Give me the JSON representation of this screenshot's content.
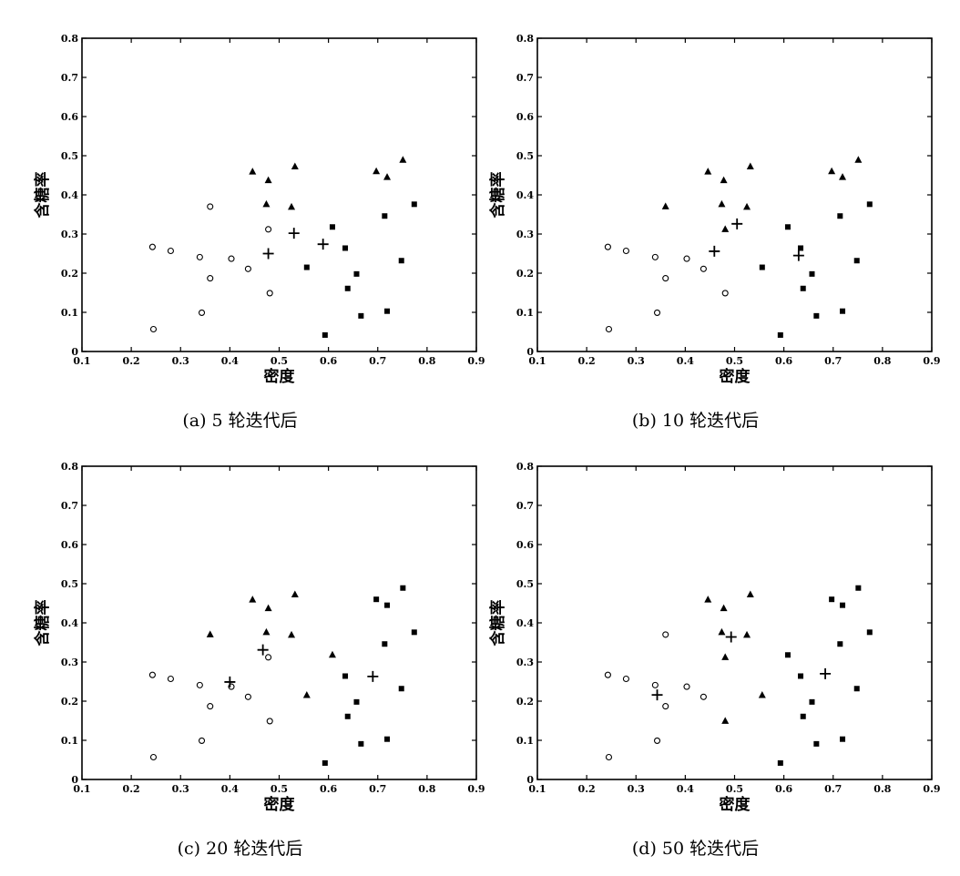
{
  "chart_data": [
    {
      "type": "scatter",
      "caption": "(a) 5 轮迭代后",
      "xlabel": "密度",
      "ylabel": "含糖率",
      "xlim": [
        0.1,
        0.9
      ],
      "ylim": [
        0,
        0.8
      ],
      "xticks": [
        "0.1",
        "0.2",
        "0.3",
        "0.4",
        "0.5",
        "0.6",
        "0.7",
        "0.8",
        "0.9"
      ],
      "yticks": [
        "0",
        "0.1",
        "0.2",
        "0.3",
        "0.4",
        "0.5",
        "0.6",
        "0.7",
        "0.8"
      ],
      "series": [
        {
          "marker": "circle",
          "points": [
            [
              0.243,
              0.267
            ],
            [
              0.28,
              0.257
            ],
            [
              0.245,
              0.057
            ],
            [
              0.343,
              0.099
            ],
            [
              0.339,
              0.241
            ],
            [
              0.36,
              0.37
            ],
            [
              0.36,
              0.187
            ],
            [
              0.403,
              0.237
            ],
            [
              0.437,
              0.211
            ],
            [
              0.481,
              0.149
            ],
            [
              0.478,
              0.312
            ]
          ]
        },
        {
          "marker": "triangle",
          "points": [
            [
              0.446,
              0.459
            ],
            [
              0.474,
              0.376
            ],
            [
              0.478,
              0.437
            ],
            [
              0.525,
              0.369
            ],
            [
              0.532,
              0.472
            ],
            [
              0.697,
              0.46
            ],
            [
              0.719,
              0.445
            ],
            [
              0.751,
              0.489
            ]
          ]
        },
        {
          "marker": "square",
          "points": [
            [
              0.593,
              0.042
            ],
            [
              0.608,
              0.318
            ],
            [
              0.634,
              0.264
            ],
            [
              0.639,
              0.161
            ],
            [
              0.657,
              0.198
            ],
            [
              0.666,
              0.091
            ],
            [
              0.719,
              0.103
            ],
            [
              0.714,
              0.346
            ],
            [
              0.748,
              0.232
            ],
            [
              0.774,
              0.376
            ],
            [
              0.556,
              0.215
            ]
          ]
        },
        {
          "marker": "plus",
          "points": [
            [
              0.478,
              0.25
            ],
            [
              0.53,
              0.302
            ],
            [
              0.589,
              0.274
            ]
          ]
        }
      ]
    },
    {
      "type": "scatter",
      "caption": "(b) 10 轮迭代后",
      "xlabel": "密度",
      "ylabel": "含糖率",
      "xlim": [
        0.1,
        0.9
      ],
      "ylim": [
        0,
        0.8
      ],
      "xticks": [
        "0.1",
        "0.2",
        "0.3",
        "0.4",
        "0.5",
        "0.6",
        "0.7",
        "0.8",
        "0.9"
      ],
      "yticks": [
        "0",
        "0.1",
        "0.2",
        "0.3",
        "0.4",
        "0.5",
        "0.6",
        "0.7",
        "0.8"
      ],
      "series": [
        {
          "marker": "circle",
          "points": [
            [
              0.243,
              0.267
            ],
            [
              0.28,
              0.257
            ],
            [
              0.245,
              0.057
            ],
            [
              0.343,
              0.099
            ],
            [
              0.339,
              0.241
            ],
            [
              0.36,
              0.187
            ],
            [
              0.403,
              0.237
            ],
            [
              0.437,
              0.211
            ],
            [
              0.481,
              0.149
            ]
          ]
        },
        {
          "marker": "triangle",
          "points": [
            [
              0.36,
              0.37
            ],
            [
              0.446,
              0.459
            ],
            [
              0.474,
              0.376
            ],
            [
              0.478,
              0.437
            ],
            [
              0.481,
              0.312
            ],
            [
              0.525,
              0.369
            ],
            [
              0.532,
              0.472
            ],
            [
              0.697,
              0.46
            ],
            [
              0.719,
              0.445
            ],
            [
              0.751,
              0.489
            ]
          ]
        },
        {
          "marker": "square",
          "points": [
            [
              0.593,
              0.042
            ],
            [
              0.608,
              0.318
            ],
            [
              0.634,
              0.264
            ],
            [
              0.639,
              0.161
            ],
            [
              0.657,
              0.198
            ],
            [
              0.666,
              0.091
            ],
            [
              0.719,
              0.103
            ],
            [
              0.714,
              0.346
            ],
            [
              0.748,
              0.232
            ],
            [
              0.774,
              0.376
            ],
            [
              0.556,
              0.215
            ]
          ]
        },
        {
          "marker": "plus",
          "points": [
            [
              0.459,
              0.256
            ],
            [
              0.505,
              0.326
            ],
            [
              0.63,
              0.245
            ]
          ]
        }
      ]
    },
    {
      "type": "scatter",
      "caption": "(c) 20 轮迭代后",
      "xlabel": "密度",
      "ylabel": "含糖率",
      "xlim": [
        0.1,
        0.9
      ],
      "ylim": [
        0,
        0.8
      ],
      "xticks": [
        "0.1",
        "0.2",
        "0.3",
        "0.4",
        "0.5",
        "0.6",
        "0.7",
        "0.8",
        "0.9"
      ],
      "yticks": [
        "0",
        "0.1",
        "0.2",
        "0.3",
        "0.4",
        "0.5",
        "0.6",
        "0.7",
        "0.8"
      ],
      "series": [
        {
          "marker": "circle",
          "points": [
            [
              0.243,
              0.267
            ],
            [
              0.28,
              0.257
            ],
            [
              0.245,
              0.057
            ],
            [
              0.343,
              0.099
            ],
            [
              0.339,
              0.241
            ],
            [
              0.36,
              0.187
            ],
            [
              0.403,
              0.237
            ],
            [
              0.437,
              0.211
            ],
            [
              0.481,
              0.149
            ],
            [
              0.478,
              0.312
            ]
          ]
        },
        {
          "marker": "triangle",
          "points": [
            [
              0.36,
              0.37
            ],
            [
              0.446,
              0.459
            ],
            [
              0.474,
              0.376
            ],
            [
              0.478,
              0.437
            ],
            [
              0.525,
              0.369
            ],
            [
              0.532,
              0.472
            ],
            [
              0.608,
              0.318
            ],
            [
              0.556,
              0.215
            ]
          ]
        },
        {
          "marker": "square",
          "points": [
            [
              0.593,
              0.042
            ],
            [
              0.634,
              0.264
            ],
            [
              0.639,
              0.161
            ],
            [
              0.657,
              0.198
            ],
            [
              0.666,
              0.091
            ],
            [
              0.719,
              0.103
            ],
            [
              0.714,
              0.346
            ],
            [
              0.748,
              0.232
            ],
            [
              0.774,
              0.376
            ],
            [
              0.697,
              0.46
            ],
            [
              0.719,
              0.445
            ],
            [
              0.751,
              0.489
            ]
          ]
        },
        {
          "marker": "plus",
          "points": [
            [
              0.4,
              0.249
            ],
            [
              0.467,
              0.331
            ],
            [
              0.69,
              0.263
            ]
          ]
        }
      ]
    },
    {
      "type": "scatter",
      "caption": "(d) 50 轮迭代后",
      "xlabel": "密度",
      "ylabel": "含糖率",
      "xlim": [
        0.1,
        0.9
      ],
      "ylim": [
        0,
        0.8
      ],
      "xticks": [
        "0.1",
        "0.2",
        "0.3",
        "0.4",
        "0.5",
        "0.6",
        "0.7",
        "0.8",
        "0.9"
      ],
      "yticks": [
        "0",
        "0.1",
        "0.2",
        "0.3",
        "0.4",
        "0.5",
        "0.6",
        "0.7",
        "0.8"
      ],
      "series": [
        {
          "marker": "circle",
          "points": [
            [
              0.243,
              0.267
            ],
            [
              0.28,
              0.257
            ],
            [
              0.245,
              0.057
            ],
            [
              0.343,
              0.099
            ],
            [
              0.339,
              0.241
            ],
            [
              0.36,
              0.37
            ],
            [
              0.36,
              0.187
            ],
            [
              0.403,
              0.237
            ],
            [
              0.437,
              0.211
            ]
          ]
        },
        {
          "marker": "triangle",
          "points": [
            [
              0.446,
              0.459
            ],
            [
              0.474,
              0.376
            ],
            [
              0.478,
              0.437
            ],
            [
              0.481,
              0.312
            ],
            [
              0.525,
              0.369
            ],
            [
              0.532,
              0.472
            ],
            [
              0.481,
              0.149
            ],
            [
              0.556,
              0.215
            ]
          ]
        },
        {
          "marker": "square",
          "points": [
            [
              0.593,
              0.042
            ],
            [
              0.608,
              0.318
            ],
            [
              0.634,
              0.264
            ],
            [
              0.639,
              0.161
            ],
            [
              0.657,
              0.198
            ],
            [
              0.666,
              0.091
            ],
            [
              0.719,
              0.103
            ],
            [
              0.714,
              0.346
            ],
            [
              0.748,
              0.232
            ],
            [
              0.774,
              0.376
            ],
            [
              0.697,
              0.46
            ],
            [
              0.719,
              0.445
            ],
            [
              0.751,
              0.489
            ]
          ]
        },
        {
          "marker": "plus",
          "points": [
            [
              0.343,
              0.216
            ],
            [
              0.493,
              0.364
            ],
            [
              0.684,
              0.27
            ]
          ]
        }
      ]
    }
  ]
}
